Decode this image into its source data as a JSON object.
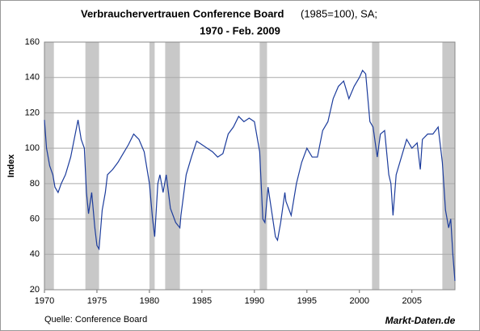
{
  "chart_data": {
    "type": "line",
    "title": "Verbrauchervertrauen Conference Board",
    "title_suffix": "(1985=100), SA;",
    "subtitle": "1970 - Feb. 2009",
    "y_label": "Index",
    "source": "Quelle: Conference Board",
    "brand": "Markt-Daten.de",
    "xlim": [
      1970,
      2009.1
    ],
    "xticks": [
      1970,
      1975,
      1980,
      1985,
      1990,
      1995,
      2000,
      2005
    ],
    "ylim": [
      20,
      160
    ],
    "yticks": [
      20,
      40,
      60,
      80,
      100,
      120,
      140,
      160
    ],
    "grid": true,
    "shade_color": "#c8c8c8",
    "shaded_periods": [
      [
        1969.9,
        1970.9
      ],
      [
        1973.9,
        1975.2
      ],
      [
        1980.0,
        1980.5
      ],
      [
        1981.5,
        1982.9
      ],
      [
        1990.5,
        1991.2
      ],
      [
        2001.2,
        2001.9
      ],
      [
        2007.9,
        2009.1
      ]
    ],
    "x": [
      1970.0,
      1970.2,
      1970.5,
      1970.8,
      1971.0,
      1971.3,
      1971.6,
      1972.0,
      1972.5,
      1973.0,
      1973.2,
      1973.5,
      1973.8,
      1974.0,
      1974.2,
      1974.5,
      1974.8,
      1975.0,
      1975.2,
      1975.5,
      1975.8,
      1976.0,
      1976.5,
      1977.0,
      1977.5,
      1978.0,
      1978.5,
      1979.0,
      1979.5,
      1980.0,
      1980.3,
      1980.5,
      1980.8,
      1981.0,
      1981.3,
      1981.6,
      1982.0,
      1982.5,
      1982.9,
      1983.0,
      1983.5,
      1984.0,
      1984.5,
      1985.0,
      1985.5,
      1986.0,
      1986.5,
      1987.0,
      1987.5,
      1988.0,
      1988.5,
      1989.0,
      1989.5,
      1990.0,
      1990.5,
      1990.8,
      1991.0,
      1991.3,
      1991.7,
      1992.0,
      1992.2,
      1992.5,
      1992.9,
      1993.0,
      1993.5,
      1994.0,
      1994.5,
      1995.0,
      1995.5,
      1996.0,
      1996.5,
      1997.0,
      1997.5,
      1998.0,
      1998.5,
      1999.0,
      1999.5,
      2000.0,
      2000.3,
      2000.6,
      2001.0,
      2001.3,
      2001.7,
      2002.0,
      2002.4,
      2002.8,
      2003.0,
      2003.2,
      2003.5,
      2004.0,
      2004.5,
      2005.0,
      2005.5,
      2005.8,
      2006.0,
      2006.5,
      2007.0,
      2007.5,
      2007.9,
      2008.2,
      2008.5,
      2008.7,
      2008.9,
      2009.1
    ],
    "series": [
      {
        "name": "Index",
        "color": "#1c3c9c",
        "values": [
          116,
          100,
          90,
          85,
          78,
          75,
          80,
          85,
          95,
          110,
          116,
          105,
          100,
          75,
          63,
          75,
          55,
          45,
          43,
          65,
          75,
          85,
          88,
          92,
          97,
          102,
          108,
          105,
          98,
          80,
          60,
          50,
          80,
          85,
          75,
          85,
          66,
          58,
          55,
          62,
          85,
          95,
          104,
          102,
          100,
          98,
          95,
          97,
          108,
          112,
          118,
          115,
          117,
          115,
          98,
          60,
          58,
          78,
          62,
          50,
          48,
          58,
          75,
          70,
          62,
          80,
          92,
          100,
          95,
          95,
          110,
          115,
          128,
          135,
          138,
          128,
          135,
          140,
          144,
          142,
          115,
          112,
          95,
          108,
          110,
          85,
          80,
          62,
          85,
          95,
          105,
          100,
          103,
          88,
          105,
          108,
          108,
          112,
          92,
          65,
          55,
          60,
          40,
          25
        ]
      }
    ]
  }
}
